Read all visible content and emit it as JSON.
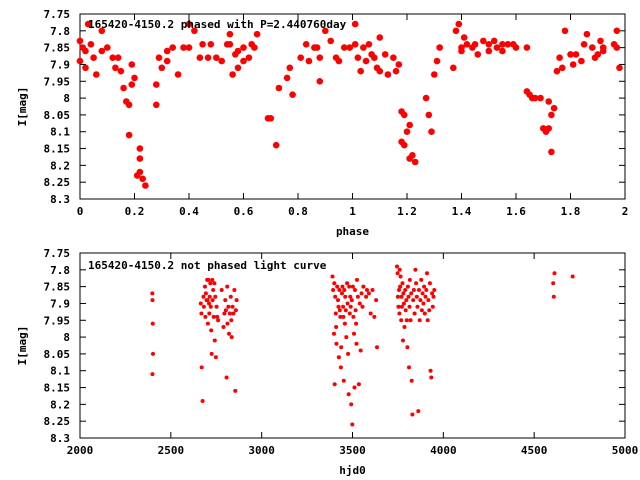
{
  "chart_data": [
    {
      "type": "scatter",
      "title": "165420-4150.2 phased with P=2.440760day",
      "xlabel": "phase",
      "ylabel": "I[mag]",
      "xlim": [
        0,
        2
      ],
      "ylim": [
        7.75,
        8.3
      ],
      "y_inverted": true,
      "grid": false,
      "marker_color": "#ff0000",
      "marker": "filled-circle-large",
      "xticks": [
        "0",
        "0.2",
        "0.4",
        "0.6",
        "0.8",
        "1",
        "1.2",
        "1.4",
        "1.6",
        "1.8",
        "2"
      ],
      "yticks": [
        "7.75",
        "7.8",
        "7.85",
        "7.9",
        "7.95",
        "8",
        "8.05",
        "8.1",
        "8.15",
        "8.2",
        "8.25",
        "8.3"
      ],
      "points": [
        [
          0.0,
          7.83
        ],
        [
          0.0,
          7.89
        ],
        [
          0.01,
          7.85
        ],
        [
          0.02,
          7.86
        ],
        [
          0.02,
          7.91
        ],
        [
          0.03,
          7.78
        ],
        [
          0.04,
          7.84
        ],
        [
          0.05,
          7.88
        ],
        [
          0.06,
          7.93
        ],
        [
          0.08,
          7.8
        ],
        [
          0.08,
          7.86
        ],
        [
          0.1,
          7.85
        ],
        [
          0.12,
          7.88
        ],
        [
          0.13,
          7.91
        ],
        [
          0.14,
          7.88
        ],
        [
          0.15,
          7.92
        ],
        [
          0.16,
          7.97
        ],
        [
          0.17,
          8.01
        ],
        [
          0.18,
          8.02
        ],
        [
          0.18,
          8.11
        ],
        [
          0.19,
          7.9
        ],
        [
          0.19,
          7.96
        ],
        [
          0.2,
          7.94
        ],
        [
          0.21,
          8.23
        ],
        [
          0.22,
          8.15
        ],
        [
          0.22,
          8.18
        ],
        [
          0.22,
          8.22
        ],
        [
          0.23,
          8.24
        ],
        [
          0.24,
          8.26
        ],
        [
          0.28,
          7.96
        ],
        [
          0.28,
          8.02
        ],
        [
          0.29,
          7.88
        ],
        [
          0.3,
          7.91
        ],
        [
          0.32,
          7.86
        ],
        [
          0.32,
          7.89
        ],
        [
          0.34,
          7.85
        ],
        [
          0.36,
          7.93
        ],
        [
          0.38,
          7.85
        ],
        [
          0.4,
          7.85
        ],
        [
          0.4,
          7.78
        ],
        [
          0.42,
          7.8
        ],
        [
          0.44,
          7.88
        ],
        [
          0.45,
          7.84
        ],
        [
          0.47,
          7.88
        ],
        [
          0.48,
          7.84
        ],
        [
          0.5,
          7.88
        ],
        [
          0.52,
          7.89
        ],
        [
          0.54,
          7.84
        ],
        [
          0.55,
          7.84
        ],
        [
          0.55,
          7.81
        ],
        [
          0.56,
          7.93
        ],
        [
          0.57,
          7.87
        ],
        [
          0.58,
          7.86
        ],
        [
          0.58,
          7.91
        ],
        [
          0.6,
          7.85
        ],
        [
          0.6,
          7.89
        ],
        [
          0.62,
          7.88
        ],
        [
          0.63,
          7.84
        ],
        [
          0.64,
          7.85
        ],
        [
          0.65,
          7.81
        ],
        [
          0.69,
          8.06
        ],
        [
          0.7,
          8.06
        ],
        [
          0.72,
          8.14
        ],
        [
          0.73,
          7.97
        ],
        [
          0.76,
          7.94
        ],
        [
          0.77,
          7.91
        ],
        [
          0.78,
          7.99
        ],
        [
          0.81,
          7.88
        ],
        [
          0.83,
          7.84
        ],
        [
          0.84,
          7.89
        ],
        [
          0.86,
          7.85
        ],
        [
          0.87,
          7.85
        ],
        [
          0.88,
          7.88
        ],
        [
          0.88,
          7.95
        ],
        [
          0.9,
          7.8
        ],
        [
          0.92,
          7.83
        ],
        [
          0.94,
          7.88
        ],
        [
          0.95,
          7.89
        ],
        [
          0.97,
          7.85
        ],
        [
          0.99,
          7.85
        ],
        [
          1.01,
          7.78
        ],
        [
          1.01,
          7.84
        ],
        [
          1.02,
          7.88
        ],
        [
          1.03,
          7.92
        ],
        [
          1.04,
          7.85
        ],
        [
          1.05,
          7.89
        ],
        [
          1.06,
          7.84
        ],
        [
          1.07,
          7.87
        ],
        [
          1.08,
          7.88
        ],
        [
          1.09,
          7.91
        ],
        [
          1.1,
          7.92
        ],
        [
          1.1,
          7.82
        ],
        [
          1.12,
          7.87
        ],
        [
          1.13,
          7.93
        ],
        [
          1.15,
          7.88
        ],
        [
          1.16,
          7.92
        ],
        [
          1.17,
          7.9
        ],
        [
          1.18,
          8.04
        ],
        [
          1.18,
          8.13
        ],
        [
          1.19,
          8.05
        ],
        [
          1.19,
          8.14
        ],
        [
          1.2,
          8.1
        ],
        [
          1.21,
          8.08
        ],
        [
          1.21,
          8.18
        ],
        [
          1.22,
          8.17
        ],
        [
          1.23,
          8.19
        ],
        [
          1.27,
          8.0
        ],
        [
          1.28,
          8.05
        ],
        [
          1.29,
          8.1
        ],
        [
          1.3,
          7.93
        ],
        [
          1.31,
          7.89
        ],
        [
          1.32,
          7.85
        ],
        [
          1.37,
          7.91
        ],
        [
          1.38,
          7.8
        ],
        [
          1.39,
          7.78
        ],
        [
          1.4,
          7.85
        ],
        [
          1.4,
          7.86
        ],
        [
          1.41,
          7.82
        ],
        [
          1.42,
          7.84
        ],
        [
          1.44,
          7.85
        ],
        [
          1.45,
          7.84
        ],
        [
          1.46,
          7.87
        ],
        [
          1.48,
          7.83
        ],
        [
          1.5,
          7.84
        ],
        [
          1.5,
          7.86
        ],
        [
          1.52,
          7.83
        ],
        [
          1.53,
          7.85
        ],
        [
          1.55,
          7.84
        ],
        [
          1.55,
          7.86
        ],
        [
          1.57,
          7.84
        ],
        [
          1.59,
          7.84
        ],
        [
          1.6,
          7.85
        ],
        [
          1.64,
          7.85
        ],
        [
          1.64,
          7.98
        ],
        [
          1.65,
          7.99
        ],
        [
          1.66,
          8.0
        ],
        [
          1.67,
          8.0
        ],
        [
          1.69,
          8.0
        ],
        [
          1.7,
          8.09
        ],
        [
          1.71,
          8.1
        ],
        [
          1.72,
          8.09
        ],
        [
          1.72,
          8.01
        ],
        [
          1.73,
          8.05
        ],
        [
          1.73,
          8.16
        ],
        [
          1.74,
          8.03
        ],
        [
          1.75,
          7.92
        ],
        [
          1.76,
          7.88
        ],
        [
          1.77,
          7.91
        ],
        [
          1.78,
          7.8
        ],
        [
          1.8,
          7.87
        ],
        [
          1.81,
          7.9
        ],
        [
          1.82,
          7.87
        ],
        [
          1.84,
          7.89
        ],
        [
          1.85,
          7.84
        ],
        [
          1.86,
          7.81
        ],
        [
          1.88,
          7.85
        ],
        [
          1.89,
          7.88
        ],
        [
          1.9,
          7.87
        ],
        [
          1.91,
          7.83
        ],
        [
          1.92,
          7.85
        ],
        [
          1.92,
          7.86
        ],
        [
          1.96,
          7.84
        ],
        [
          1.97,
          7.8
        ],
        [
          1.97,
          7.85
        ],
        [
          1.98,
          7.91
        ]
      ]
    },
    {
      "type": "scatter",
      "title": "165420-4150.2 not phased light curve",
      "xlabel": "hjd0",
      "ylabel": "I[mag]",
      "xlim": [
        2000,
        5000
      ],
      "ylim": [
        7.75,
        8.3
      ],
      "y_inverted": true,
      "grid": false,
      "marker_color": "#ff0000",
      "marker": "filled-circle-small",
      "xticks": [
        "2000",
        "2500",
        "3000",
        "3500",
        "4000",
        "4500",
        "5000"
      ],
      "yticks": [
        "7.75",
        "7.8",
        "7.85",
        "7.9",
        "7.95",
        "8",
        "8.05",
        "8.1",
        "8.15",
        "8.2",
        "8.25",
        "8.3"
      ],
      "points": [
        [
          2398,
          7.87
        ],
        [
          2399,
          7.89
        ],
        [
          2401,
          7.96
        ],
        [
          2402,
          8.05
        ],
        [
          2399,
          8.11
        ],
        [
          2665,
          7.9
        ],
        [
          2668,
          7.93
        ],
        [
          2670,
          8.09
        ],
        [
          2675,
          8.19
        ],
        [
          2680,
          7.88
        ],
        [
          2682,
          7.91
        ],
        [
          2688,
          7.85
        ],
        [
          2690,
          7.94
        ],
        [
          2693,
          7.87
        ],
        [
          2697,
          7.89
        ],
        [
          2700,
          7.83
        ],
        [
          2702,
          7.89
        ],
        [
          2704,
          7.96
        ],
        [
          2707,
          7.83
        ],
        [
          2710,
          7.9
        ],
        [
          2712,
          7.93
        ],
        [
          2714,
          7.88
        ],
        [
          2717,
          7.84
        ],
        [
          2720,
          7.91
        ],
        [
          2722,
          7.98
        ],
        [
          2725,
          8.05
        ],
        [
          2728,
          7.83
        ],
        [
          2730,
          7.89
        ],
        [
          2733,
          7.86
        ],
        [
          2736,
          7.94
        ],
        [
          2740,
          7.84
        ],
        [
          2742,
          8.01
        ],
        [
          2745,
          7.88
        ],
        [
          2748,
          8.06
        ],
        [
          2752,
          7.91
        ],
        [
          2755,
          7.94
        ],
        [
          2760,
          7.95
        ],
        [
          2780,
          7.86
        ],
        [
          2790,
          7.97
        ],
        [
          2795,
          7.93
        ],
        [
          2800,
          7.89
        ],
        [
          2803,
          7.92
        ],
        [
          2807,
          8.12
        ],
        [
          2810,
          7.85
        ],
        [
          2812,
          7.96
        ],
        [
          2817,
          7.91
        ],
        [
          2820,
          7.99
        ],
        [
          2825,
          7.93
        ],
        [
          2830,
          7.88
        ],
        [
          2833,
          7.95
        ],
        [
          2835,
          8.0
        ],
        [
          2840,
          7.91
        ],
        [
          2845,
          7.93
        ],
        [
          2850,
          7.86
        ],
        [
          2855,
          8.16
        ],
        [
          2858,
          7.92
        ],
        [
          2862,
          7.89
        ],
        [
          3390,
          7.82
        ],
        [
          3393,
          7.86
        ],
        [
          3398,
          7.99
        ],
        [
          3400,
          7.84
        ],
        [
          3402,
          8.14
        ],
        [
          3405,
          7.88
        ],
        [
          3408,
          7.93
        ],
        [
          3410,
          7.97
        ],
        [
          3412,
          8.02
        ],
        [
          3416,
          7.85
        ],
        [
          3420,
          7.89
        ],
        [
          3423,
          7.91
        ],
        [
          3425,
          8.06
        ],
        [
          3428,
          7.86
        ],
        [
          3430,
          7.92
        ],
        [
          3433,
          7.94
        ],
        [
          3436,
          8.09
        ],
        [
          3438,
          8.03
        ],
        [
          3442,
          7.87
        ],
        [
          3445,
          7.85
        ],
        [
          3448,
          7.91
        ],
        [
          3450,
          7.94
        ],
        [
          3452,
          8.13
        ],
        [
          3455,
          7.86
        ],
        [
          3458,
          7.96
        ],
        [
          3460,
          7.88
        ],
        [
          3463,
          7.92
        ],
        [
          3466,
          8.0
        ],
        [
          3470,
          7.84
        ],
        [
          3473,
          7.9
        ],
        [
          3476,
          8.05
        ],
        [
          3479,
          8.17
        ],
        [
          3482,
          7.85
        ],
        [
          3485,
          7.93
        ],
        [
          3488,
          7.88
        ],
        [
          3490,
          7.91
        ],
        [
          3493,
          8.2
        ],
        [
          3496,
          7.89
        ],
        [
          3499,
          8.26
        ],
        [
          3502,
          7.85
        ],
        [
          3505,
          7.94
        ],
        [
          3508,
          7.99
        ],
        [
          3511,
          8.15
        ],
        [
          3514,
          7.86
        ],
        [
          3517,
          7.92
        ],
        [
          3520,
          7.96
        ],
        [
          3522,
          8.02
        ],
        [
          3525,
          7.83
        ],
        [
          3530,
          7.88
        ],
        [
          3535,
          8.14
        ],
        [
          3540,
          7.9
        ],
        [
          3545,
          8.04
        ],
        [
          3550,
          7.87
        ],
        [
          3555,
          7.91
        ],
        [
          3560,
          7.85
        ],
        [
          3575,
          7.88
        ],
        [
          3580,
          7.86
        ],
        [
          3590,
          7.87
        ],
        [
          3600,
          7.93
        ],
        [
          3610,
          7.86
        ],
        [
          3620,
          7.94
        ],
        [
          3630,
          7.89
        ],
        [
          3635,
          8.03
        ],
        [
          3745,
          7.79
        ],
        [
          3748,
          7.81
        ],
        [
          3750,
          7.88
        ],
        [
          3753,
          7.91
        ],
        [
          3756,
          7.86
        ],
        [
          3758,
          7.93
        ],
        [
          3760,
          7.8
        ],
        [
          3762,
          7.85
        ],
        [
          3765,
          7.82
        ],
        [
          3768,
          7.95
        ],
        [
          3770,
          7.88
        ],
        [
          3772,
          7.91
        ],
        [
          3775,
          7.84
        ],
        [
          3778,
          8.01
        ],
        [
          3780,
          7.87
        ],
        [
          3783,
          7.9
        ],
        [
          3786,
          7.97
        ],
        [
          3790,
          7.86
        ],
        [
          3793,
          7.92
        ],
        [
          3796,
          7.89
        ],
        [
          3799,
          7.95
        ],
        [
          3802,
          8.03
        ],
        [
          3805,
          7.85
        ],
        [
          3808,
          7.88
        ],
        [
          3811,
          8.09
        ],
        [
          3814,
          7.91
        ],
        [
          3816,
          7.83
        ],
        [
          3820,
          7.95
        ],
        [
          3823,
          7.87
        ],
        [
          3826,
          8.13
        ],
        [
          3830,
          8.23
        ],
        [
          3834,
          7.89
        ],
        [
          3838,
          7.86
        ],
        [
          3842,
          7.93
        ],
        [
          3846,
          7.8
        ],
        [
          3850,
          7.84
        ],
        [
          3854,
          7.88
        ],
        [
          3858,
          7.91
        ],
        [
          3862,
          8.22
        ],
        [
          3866,
          7.86
        ],
        [
          3870,
          7.95
        ],
        [
          3874,
          7.89
        ],
        [
          3878,
          7.83
        ],
        [
          3882,
          7.92
        ],
        [
          3886,
          7.87
        ],
        [
          3890,
          7.9
        ],
        [
          3894,
          7.85
        ],
        [
          3898,
          7.93
        ],
        [
          3902,
          7.88
        ],
        [
          3906,
          7.86
        ],
        [
          3910,
          7.81
        ],
        [
          3914,
          7.95
        ],
        [
          3918,
          7.89
        ],
        [
          3922,
          7.92
        ],
        [
          3926,
          7.84
        ],
        [
          3930,
          8.1
        ],
        [
          3934,
          8.12
        ],
        [
          3938,
          7.87
        ],
        [
          3942,
          7.91
        ],
        [
          3946,
          7.88
        ],
        [
          3950,
          7.86
        ],
        [
          4605,
          7.84
        ],
        [
          4608,
          7.88
        ],
        [
          4612,
          7.81
        ],
        [
          4712,
          7.82
        ]
      ]
    }
  ]
}
